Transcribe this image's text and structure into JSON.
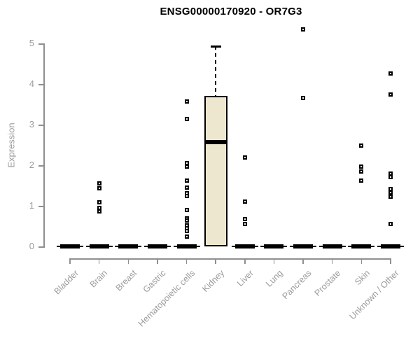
{
  "chart_data": {
    "type": "boxplot",
    "title": "ENSG00000170920 - OR7G3",
    "xlabel": "",
    "ylabel": "Expression",
    "ylim": [
      0,
      5.4
    ],
    "yticks": [
      0,
      1,
      2,
      3,
      4,
      5
    ],
    "grid": false,
    "legend": "none",
    "box_fill_color": "#EDE7D0",
    "box_line_color": "#000000",
    "axis_color": "#8f8f8f",
    "label_color": "#9b9b9b",
    "categories": [
      "Bladder",
      "Brain",
      "Breast",
      "Gastric",
      "Hematopoietic cells",
      "Kidney",
      "Liver",
      "Lung",
      "Pancreas",
      "Prostate",
      "Skin",
      "Unknown / Other"
    ],
    "boxes": [
      {
        "category": "Bladder",
        "q1": 0,
        "median": 0,
        "q3": 0,
        "whisker_low": 0,
        "whisker_high": 0,
        "outliers": []
      },
      {
        "category": "Brain",
        "q1": 0,
        "median": 0,
        "q3": 0,
        "whisker_low": 0,
        "whisker_high": 0,
        "outliers": [
          1.55,
          1.43,
          1.08,
          0.95,
          0.86
        ]
      },
      {
        "category": "Breast",
        "q1": 0,
        "median": 0,
        "q3": 0,
        "whisker_low": 0,
        "whisker_high": 0,
        "outliers": []
      },
      {
        "category": "Gastric",
        "q1": 0,
        "median": 0,
        "q3": 0,
        "whisker_low": 0,
        "whisker_high": 0,
        "outliers": []
      },
      {
        "category": "Hematopoietic cells",
        "q1": 0,
        "median": 0,
        "q3": 0,
        "whisker_low": 0,
        "whisker_high": 0,
        "outliers": [
          3.57,
          3.14,
          2.05,
          1.97,
          1.62,
          1.45,
          1.31,
          1.24,
          0.9,
          0.69,
          0.64,
          0.52,
          0.45,
          0.38,
          0.24
        ]
      },
      {
        "category": "Kidney",
        "q1": 0,
        "median": 2.57,
        "q3": 3.71,
        "whisker_low": 0,
        "whisker_high": 4.93,
        "outliers": []
      },
      {
        "category": "Liver",
        "q1": 0,
        "median": 0,
        "q3": 0,
        "whisker_low": 0,
        "whisker_high": 0,
        "outliers": [
          2.19,
          1.1,
          0.67,
          0.55
        ]
      },
      {
        "category": "Lung",
        "q1": 0,
        "median": 0,
        "q3": 0,
        "whisker_low": 0,
        "whisker_high": 0,
        "outliers": []
      },
      {
        "category": "Pancreas",
        "q1": 0,
        "median": 0,
        "q3": 0,
        "whisker_low": 0,
        "whisker_high": 0,
        "outliers": [
          5.34,
          3.66
        ]
      },
      {
        "category": "Prostate",
        "q1": 0,
        "median": 0,
        "q3": 0,
        "whisker_low": 0,
        "whisker_high": 0,
        "outliers": []
      },
      {
        "category": "Skin",
        "q1": 0,
        "median": 0,
        "q3": 0,
        "whisker_low": 0,
        "whisker_high": 0,
        "outliers": [
          2.48,
          1.97,
          1.84,
          1.62
        ]
      },
      {
        "category": "Unknown / Other",
        "q1": 0,
        "median": 0,
        "q3": 0,
        "whisker_low": 0,
        "whisker_high": 0,
        "outliers": [
          4.26,
          3.74,
          1.79,
          1.71,
          1.41,
          1.33,
          1.22,
          0.55
        ]
      }
    ]
  }
}
